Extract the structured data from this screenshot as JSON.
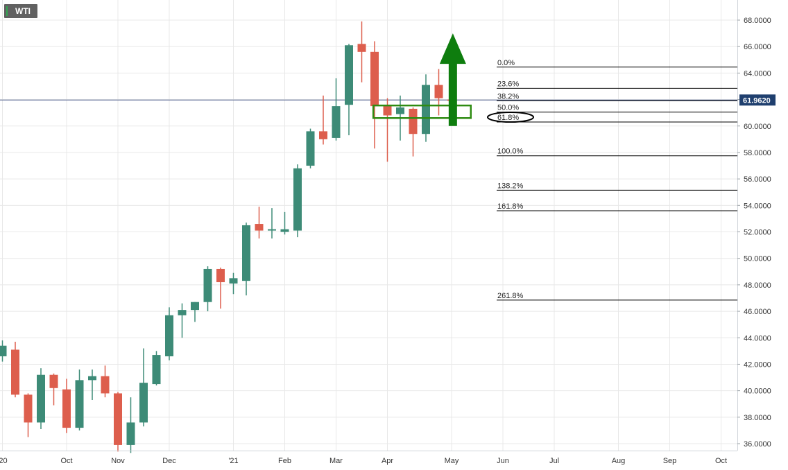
{
  "symbol": "WTI",
  "chart_data": {
    "type": "candlestick",
    "ylim": [
      35.5,
      69.0
    ],
    "y_ticks": [
      "36.0000",
      "38.0000",
      "40.0000",
      "42.0000",
      "44.0000",
      "46.0000",
      "48.0000",
      "50.0000",
      "52.0000",
      "54.0000",
      "56.0000",
      "58.0000",
      "60.0000",
      "62.0000",
      "64.0000",
      "66.0000",
      "68.0000"
    ],
    "x_labels": [
      {
        "label": "'20",
        "week": 0
      },
      {
        "label": "Oct",
        "week": 5
      },
      {
        "label": "Nov",
        "week": 9
      },
      {
        "label": "Dec",
        "week": 13
      },
      {
        "label": "'21",
        "week": 18
      },
      {
        "label": "Feb",
        "week": 22
      },
      {
        "label": "Mar",
        "week": 26
      },
      {
        "label": "Apr",
        "week": 30
      },
      {
        "label": "May",
        "week": 35
      },
      {
        "label": "Jun",
        "week": 39
      },
      {
        "label": "Jul",
        "week": 43
      },
      {
        "label": "Aug",
        "week": 48
      },
      {
        "label": "Sep",
        "week": 52
      },
      {
        "label": "Oct",
        "week": 56
      }
    ],
    "candles": [
      {
        "o": 42.6,
        "h": 43.8,
        "l": 42.2,
        "c": 43.4
      },
      {
        "o": 43.1,
        "h": 43.7,
        "l": 39.5,
        "c": 39.7
      },
      {
        "o": 39.7,
        "h": 39.8,
        "l": 36.5,
        "c": 37.6
      },
      {
        "o": 37.6,
        "h": 41.7,
        "l": 37.1,
        "c": 41.2
      },
      {
        "o": 41.2,
        "h": 41.3,
        "l": 38.9,
        "c": 40.2
      },
      {
        "o": 40.1,
        "h": 40.9,
        "l": 36.8,
        "c": 37.2
      },
      {
        "o": 37.2,
        "h": 41.6,
        "l": 37.0,
        "c": 40.8
      },
      {
        "o": 40.8,
        "h": 41.6,
        "l": 39.3,
        "c": 41.1
      },
      {
        "o": 41.1,
        "h": 41.9,
        "l": 39.5,
        "c": 39.8
      },
      {
        "o": 39.8,
        "h": 39.9,
        "l": 35.4,
        "c": 35.9
      },
      {
        "o": 35.9,
        "h": 39.5,
        "l": 35.3,
        "c": 37.6
      },
      {
        "o": 37.6,
        "h": 43.2,
        "l": 37.3,
        "c": 40.6
      },
      {
        "o": 40.5,
        "h": 43.0,
        "l": 40.4,
        "c": 42.7
      },
      {
        "o": 42.6,
        "h": 46.3,
        "l": 42.3,
        "c": 45.7
      },
      {
        "o": 45.7,
        "h": 46.6,
        "l": 44.0,
        "c": 46.1
      },
      {
        "o": 46.1,
        "h": 46.7,
        "l": 45.2,
        "c": 46.7
      },
      {
        "o": 46.7,
        "h": 49.4,
        "l": 46.0,
        "c": 49.2
      },
      {
        "o": 49.2,
        "h": 49.3,
        "l": 46.2,
        "c": 48.2
      },
      {
        "o": 48.1,
        "h": 48.9,
        "l": 47.3,
        "c": 48.5
      },
      {
        "o": 48.3,
        "h": 52.7,
        "l": 47.2,
        "c": 52.5
      },
      {
        "o": 52.6,
        "h": 53.9,
        "l": 51.5,
        "c": 52.1
      },
      {
        "o": 52.1,
        "h": 53.8,
        "l": 51.5,
        "c": 52.2
      },
      {
        "o": 52.0,
        "h": 53.5,
        "l": 51.8,
        "c": 52.2
      },
      {
        "o": 52.1,
        "h": 57.1,
        "l": 51.6,
        "c": 56.8
      },
      {
        "o": 57.0,
        "h": 59.8,
        "l": 56.8,
        "c": 59.6
      },
      {
        "o": 59.6,
        "h": 62.3,
        "l": 58.6,
        "c": 59.0
      },
      {
        "o": 59.1,
        "h": 63.6,
        "l": 58.9,
        "c": 61.5
      },
      {
        "o": 61.6,
        "h": 66.2,
        "l": 59.3,
        "c": 66.1
      },
      {
        "o": 66.2,
        "h": 67.9,
        "l": 63.3,
        "c": 65.6
      },
      {
        "o": 65.6,
        "h": 66.4,
        "l": 58.3,
        "c": 61.5
      },
      {
        "o": 61.5,
        "h": 62.1,
        "l": 57.3,
        "c": 60.8
      },
      {
        "o": 60.9,
        "h": 62.3,
        "l": 58.9,
        "c": 61.4
      },
      {
        "o": 61.3,
        "h": 61.4,
        "l": 57.7,
        "c": 59.4
      },
      {
        "o": 59.4,
        "h": 63.9,
        "l": 58.8,
        "c": 63.1
      },
      {
        "o": 63.1,
        "h": 64.3,
        "l": 60.8,
        "c": 62.1
      },
      {
        "o": 62.0,
        "h": 62.3,
        "l": 60.6,
        "c": 61.9
      }
    ],
    "current_price": {
      "value": 61.962,
      "label": "61.9620"
    },
    "fib_levels": [
      {
        "label": "0.0%",
        "value": 64.45
      },
      {
        "label": "23.6%",
        "value": 62.85
      },
      {
        "label": "38.2%",
        "value": 61.9
      },
      {
        "label": "50.0%",
        "value": 61.05
      },
      {
        "label": "61.8%",
        "value": 60.3
      },
      {
        "label": "100.0%",
        "value": 57.75
      },
      {
        "label": "138.2%",
        "value": 55.15
      },
      {
        "label": "161.8%",
        "value": 53.6
      },
      {
        "label": "261.8%",
        "value": 46.85
      }
    ],
    "support_box": {
      "week_start": 28.9,
      "week_end": 36.5,
      "top": 61.55,
      "bottom": 60.6
    },
    "highlight_level": "61.8%",
    "arrow": {
      "week": 35.1,
      "from": 60.0,
      "to": 67.0
    },
    "colors": {
      "up": "#3d8b77",
      "down": "#dd5e4d",
      "box": "#2e8b12",
      "arrow": "#0e7d0e",
      "price_tag": "#1f3f6e",
      "price_line": "#4a5a8a",
      "grid": "#e8e8e8"
    }
  }
}
